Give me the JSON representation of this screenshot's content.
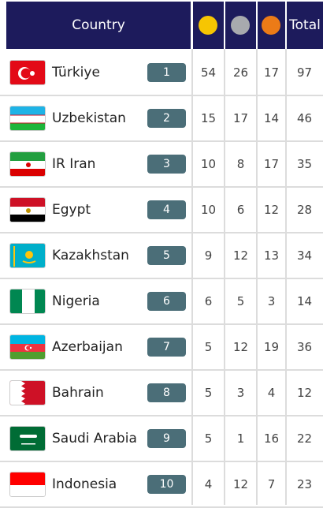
{
  "table": {
    "header": {
      "country": "Country",
      "total": "Total"
    },
    "rows": [
      {
        "country": "Türkiye",
        "rank": 1,
        "gold": 54,
        "silver": 26,
        "bronze": 17,
        "total": 97
      },
      {
        "country": "Uzbekistan",
        "rank": 2,
        "gold": 15,
        "silver": 17,
        "bronze": 14,
        "total": 46
      },
      {
        "country": "IR Iran",
        "rank": 3,
        "gold": 10,
        "silver": 8,
        "bronze": 17,
        "total": 35
      },
      {
        "country": "Egypt",
        "rank": 4,
        "gold": 10,
        "silver": 6,
        "bronze": 12,
        "total": 28
      },
      {
        "country": "Kazakhstan",
        "rank": 5,
        "gold": 9,
        "silver": 12,
        "bronze": 13,
        "total": 34
      },
      {
        "country": "Nigeria",
        "rank": 6,
        "gold": 6,
        "silver": 5,
        "bronze": 3,
        "total": 14
      },
      {
        "country": "Azerbaijan",
        "rank": 7,
        "gold": 5,
        "silver": 12,
        "bronze": 19,
        "total": 36
      },
      {
        "country": "Bahrain",
        "rank": 8,
        "gold": 5,
        "silver": 3,
        "bronze": 4,
        "total": 12
      },
      {
        "country": "Saudi Arabia",
        "rank": 9,
        "gold": 5,
        "silver": 1,
        "bronze": 16,
        "total": 22
      },
      {
        "country": "Indonesia",
        "rank": 10,
        "gold": 4,
        "silver": 12,
        "bronze": 7,
        "total": 23
      }
    ]
  }
}
